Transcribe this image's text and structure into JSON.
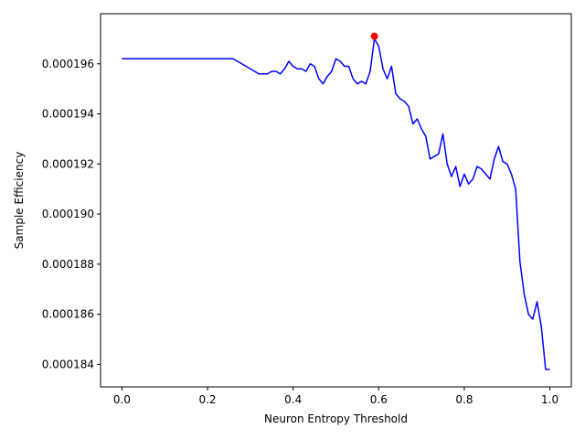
{
  "chart_data": {
    "type": "line",
    "title": "",
    "xlabel": "Neuron Entropy Threshold",
    "ylabel": "Sample Efficiency",
    "xlim": [
      -0.05,
      1.05
    ],
    "ylim": [
      0.0001831,
      0.000198
    ],
    "x_ticks": [
      0.0,
      0.2,
      0.4,
      0.6,
      0.8,
      1.0
    ],
    "x_tick_labels": [
      "0.0",
      "0.2",
      "0.4",
      "0.6",
      "0.8",
      "1.0"
    ],
    "y_ticks": [
      0.000184,
      0.000186,
      0.000188,
      0.00019,
      0.000192,
      0.000194,
      0.000196
    ],
    "y_tick_labels": [
      "0.000184",
      "0.000186",
      "0.000188",
      "0.000190",
      "0.000192",
      "0.000194",
      "0.000196"
    ],
    "grid": false,
    "series": [
      {
        "color": "#0000ff",
        "x": [
          0.0,
          0.01,
          0.02,
          0.03,
          0.04,
          0.05,
          0.06,
          0.07,
          0.08,
          0.09,
          0.1,
          0.11,
          0.12,
          0.13,
          0.14,
          0.15,
          0.16,
          0.17,
          0.18,
          0.19,
          0.2,
          0.21,
          0.22,
          0.23,
          0.24,
          0.25,
          0.26,
          0.27,
          0.28,
          0.29,
          0.3,
          0.31,
          0.32,
          0.33,
          0.34,
          0.35,
          0.36,
          0.37,
          0.38,
          0.39,
          0.4,
          0.41,
          0.42,
          0.43,
          0.44,
          0.45,
          0.46,
          0.47,
          0.48,
          0.49,
          0.5,
          0.51,
          0.52,
          0.53,
          0.54,
          0.55,
          0.56,
          0.57,
          0.58,
          0.59,
          0.6,
          0.61,
          0.62,
          0.63,
          0.64,
          0.65,
          0.66,
          0.67,
          0.68,
          0.69,
          0.7,
          0.71,
          0.72,
          0.73,
          0.74,
          0.75,
          0.76,
          0.77,
          0.78,
          0.79,
          0.8,
          0.81,
          0.82,
          0.83,
          0.84,
          0.85,
          0.86,
          0.87,
          0.88,
          0.89,
          0.9,
          0.91,
          0.92,
          0.93,
          0.94,
          0.95,
          0.96,
          0.97,
          0.98,
          0.99,
          1.0
        ],
        "y": [
          0.0001962,
          0.0001962,
          0.0001962,
          0.0001962,
          0.0001962,
          0.0001962,
          0.0001962,
          0.0001962,
          0.0001962,
          0.0001962,
          0.0001962,
          0.0001962,
          0.0001962,
          0.0001962,
          0.0001962,
          0.0001962,
          0.0001962,
          0.0001962,
          0.0001962,
          0.0001962,
          0.0001962,
          0.0001962,
          0.0001962,
          0.0001962,
          0.0001962,
          0.0001962,
          0.0001962,
          0.0001961,
          0.000196,
          0.0001959,
          0.0001958,
          0.0001957,
          0.0001956,
          0.0001956,
          0.0001956,
          0.0001957,
          0.0001957,
          0.0001956,
          0.0001958,
          0.0001961,
          0.0001959,
          0.0001958,
          0.0001958,
          0.0001957,
          0.000196,
          0.0001959,
          0.0001954,
          0.0001952,
          0.0001955,
          0.0001957,
          0.0001962,
          0.0001961,
          0.0001959,
          0.0001959,
          0.0001954,
          0.0001952,
          0.0001953,
          0.0001952,
          0.0001957,
          0.000197,
          0.0001967,
          0.0001958,
          0.0001954,
          0.0001959,
          0.0001948,
          0.0001946,
          0.0001945,
          0.0001943,
          0.0001936,
          0.0001938,
          0.0001934,
          0.0001931,
          0.0001922,
          0.0001923,
          0.0001924,
          0.0001932,
          0.000192,
          0.0001915,
          0.0001919,
          0.0001911,
          0.0001916,
          0.0001912,
          0.0001914,
          0.0001919,
          0.0001918,
          0.0001916,
          0.0001914,
          0.0001922,
          0.0001927,
          0.0001921,
          0.000192,
          0.0001916,
          0.000191,
          0.0001881,
          0.0001868,
          0.000186,
          0.0001858,
          0.0001865,
          0.0001855,
          0.0001838,
          0.0001838
        ]
      }
    ],
    "highlight_point": {
      "x": 0.59,
      "y": 0.0001971,
      "color": "#ff0000"
    }
  }
}
